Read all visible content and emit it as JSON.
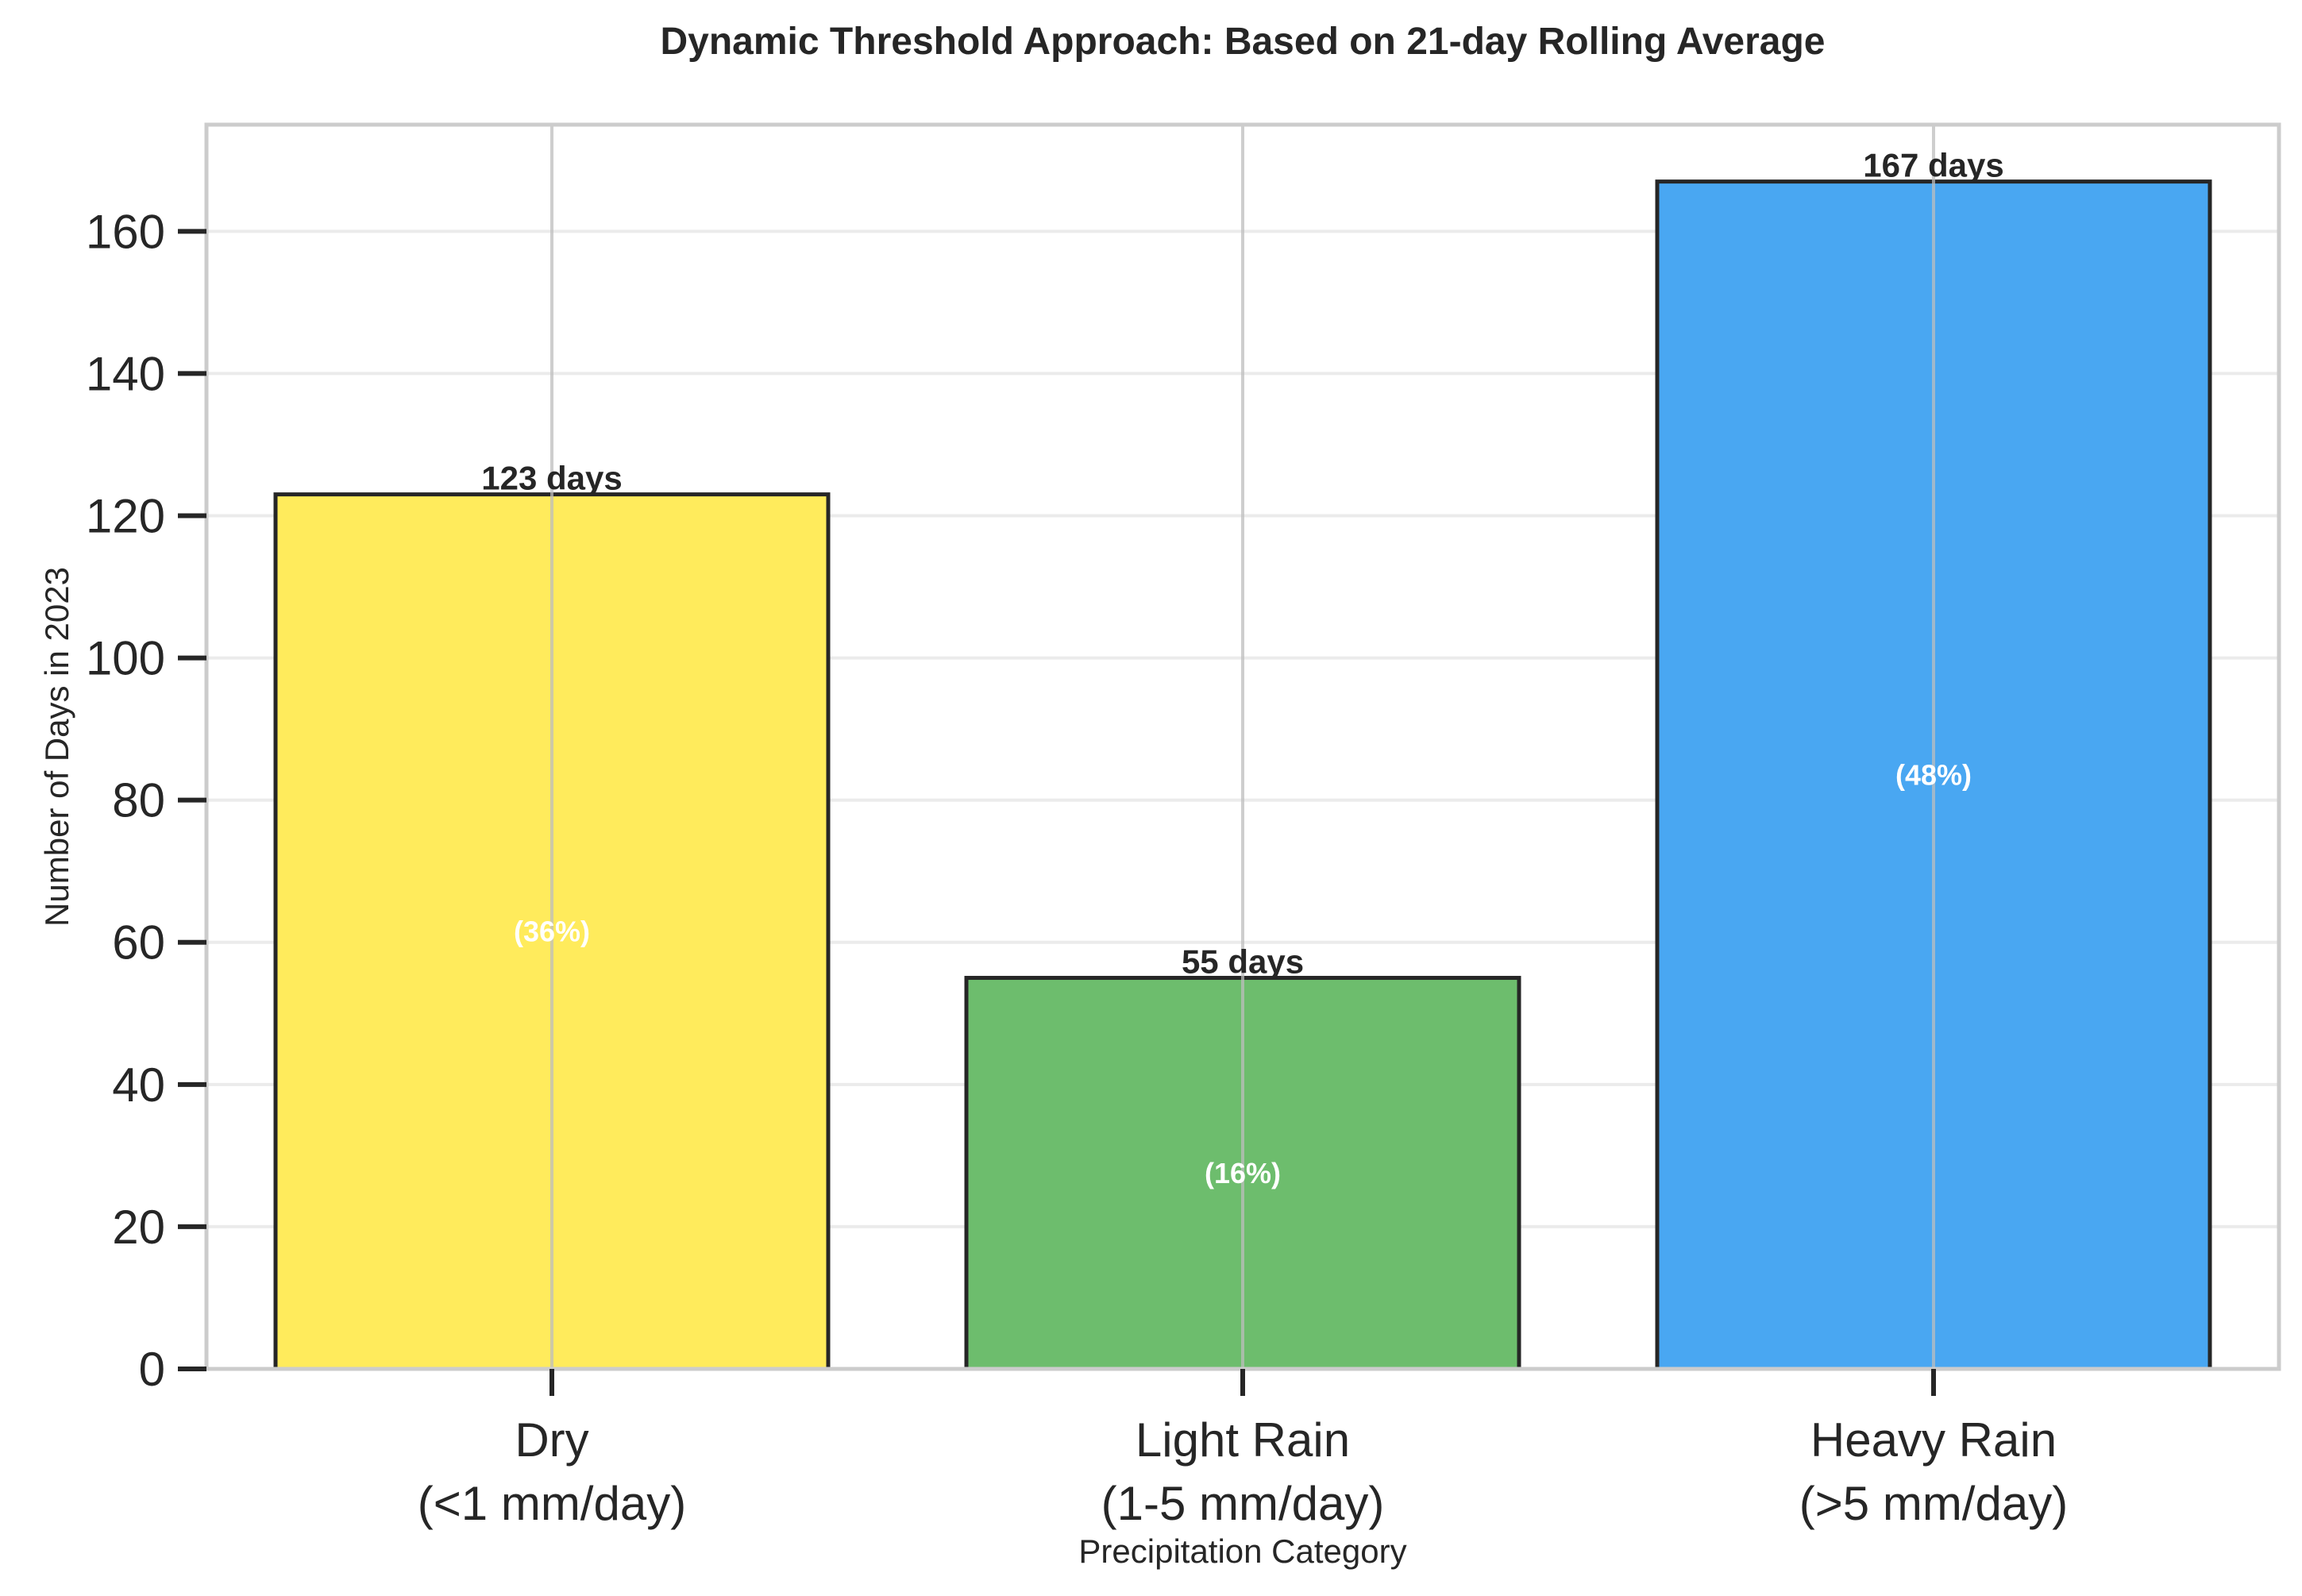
{
  "chart_data": {
    "type": "bar",
    "title": "Dynamic Threshold Approach: Based on 21-day Rolling Average",
    "xlabel": "Precipitation Category",
    "ylabel": "Number of Days in 2023",
    "categories": [
      [
        "Dry",
        "(<1 mm/day)"
      ],
      [
        "Light Rain",
        "(1-5 mm/day)"
      ],
      [
        "Heavy Rain",
        "(>5 mm/day)"
      ]
    ],
    "values": [
      123,
      55,
      167
    ],
    "value_labels": [
      "123 days",
      "55 days",
      "167 days"
    ],
    "percent_labels": [
      "(36%)",
      "(16%)",
      "(48%)"
    ],
    "colors": [
      "#ffeb5c",
      "#6dbd6d",
      "#49a7f2"
    ],
    "ylim": [
      0,
      175
    ],
    "yticks": [
      0,
      20,
      40,
      60,
      80,
      100,
      120,
      140,
      160
    ],
    "grid": true,
    "legend": "none"
  }
}
